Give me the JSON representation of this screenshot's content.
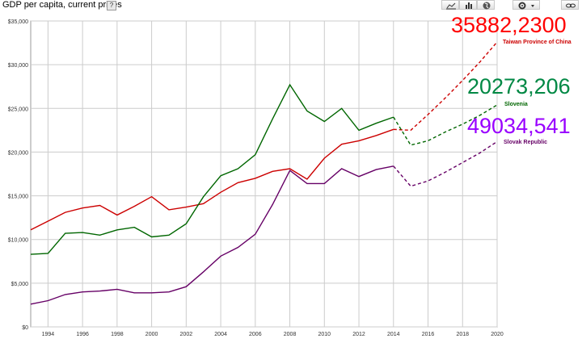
{
  "header": {
    "title": "GDP per capita, current prices",
    "help_label": "?"
  },
  "toolbar": {
    "buttons": [
      {
        "name": "line-chart-icon"
      },
      {
        "name": "bar-chart-icon"
      },
      {
        "name": "globe-map-icon"
      },
      {
        "name": "gear-icon"
      },
      {
        "name": "chevron-down-icon"
      },
      {
        "name": "link-icon"
      }
    ]
  },
  "chart_data": {
    "type": "line",
    "title": "GDP per capita, current prices",
    "xlabel": "",
    "ylabel": "",
    "xlim": [
      1993,
      2020
    ],
    "ylim": [
      0,
      35000
    ],
    "x_ticks": [
      1994,
      1996,
      1998,
      2000,
      2002,
      2004,
      2006,
      2008,
      2010,
      2012,
      2014,
      2016,
      2018,
      2020
    ],
    "y_ticks": [
      0,
      5000,
      10000,
      15000,
      20000,
      25000,
      30000,
      35000
    ],
    "y_tick_labels": [
      "$0",
      "$5,000",
      "$10,000",
      "$15,000",
      "$20,000",
      "$25,000",
      "$30,000",
      "$35,000"
    ],
    "grid": true,
    "projection_start_year": 2015,
    "series": [
      {
        "name": "Taiwan Province of China",
        "color": "#cc0000",
        "x": [
          1993,
          1994,
          1995,
          1996,
          1997,
          1998,
          1999,
          2000,
          2001,
          2002,
          2003,
          2004,
          2005,
          2006,
          2007,
          2008,
          2009,
          2010,
          2011,
          2012,
          2013,
          2014,
          2015,
          2016,
          2017,
          2018,
          2019,
          2020
        ],
        "values": [
          11100,
          12100,
          13100,
          13600,
          13900,
          12800,
          13800,
          14900,
          13400,
          13700,
          14100,
          15400,
          16500,
          17000,
          17800,
          18100,
          16900,
          19300,
          20900,
          21300,
          21900,
          22600,
          22500,
          24300,
          26200,
          28200,
          30300,
          32600
        ]
      },
      {
        "name": "Slovenia",
        "color": "#006600",
        "x": [
          1993,
          1994,
          1995,
          1996,
          1997,
          1998,
          1999,
          2000,
          2001,
          2002,
          2003,
          2004,
          2005,
          2006,
          2007,
          2008,
          2009,
          2010,
          2011,
          2012,
          2013,
          2014,
          2015,
          2016,
          2017,
          2018,
          2019,
          2020
        ],
        "values": [
          8300,
          8400,
          10700,
          10800,
          10500,
          11100,
          11400,
          10300,
          10500,
          11800,
          14900,
          17300,
          18100,
          19700,
          23800,
          27700,
          24700,
          23500,
          25000,
          22500,
          23300,
          24000,
          20800,
          21300,
          22300,
          23200,
          24200,
          25400
        ]
      },
      {
        "name": "Slovak Republic",
        "color": "#660066",
        "x": [
          1993,
          1994,
          1995,
          1996,
          1997,
          1998,
          1999,
          2000,
          2001,
          2002,
          2003,
          2004,
          2005,
          2006,
          2007,
          2008,
          2009,
          2010,
          2011,
          2012,
          2013,
          2014,
          2015,
          2016,
          2017,
          2018,
          2019,
          2020
        ],
        "values": [
          2600,
          3000,
          3700,
          4000,
          4100,
          4300,
          3900,
          3900,
          4000,
          4600,
          6300,
          8100,
          9100,
          10600,
          14000,
          17900,
          16400,
          16400,
          18100,
          17200,
          18000,
          18400,
          16100,
          16700,
          17700,
          18800,
          19900,
          21200
        ]
      }
    ],
    "annotations": [
      {
        "text": "35882,2300",
        "color": "#ff0000"
      },
      {
        "text": "20273,206",
        "color": "#008844"
      },
      {
        "text": "49034,541",
        "color": "#9900ff"
      }
    ]
  }
}
